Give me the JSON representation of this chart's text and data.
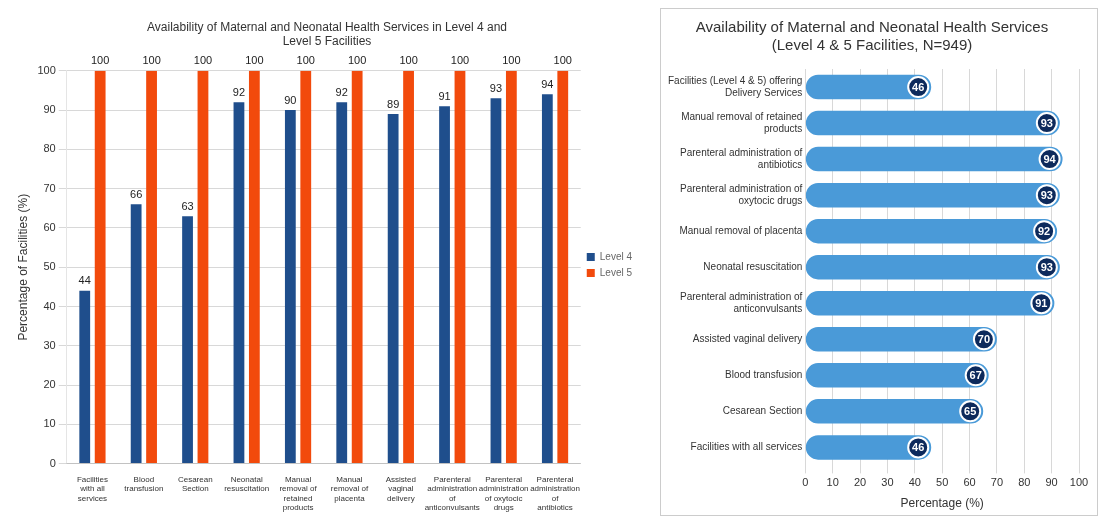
{
  "chart_data": [
    {
      "type": "bar",
      "title": "Availability of Maternal and Neonatal Health Services in Level 4 and Level 5 Facilities",
      "ylabel": "Percentage of Facilities (%)",
      "categories": [
        "Facilities with all services",
        "Blood transfusion",
        "Cesarean Section",
        "Neonatal resuscitation",
        "Manual removal of retained products",
        "Manual removal of placenta",
        "Assisted vaginal delivery",
        "Parenteral administration of anticonvulsants",
        "Parenteral administration of oxytocic drugs",
        "Parenteral administration of antibiotics"
      ],
      "series": [
        {
          "name": "Level 4",
          "color": "#1f4e8c",
          "values": [
            44,
            66,
            63,
            92,
            90,
            92,
            89,
            91,
            93,
            94
          ]
        },
        {
          "name": "Level 5",
          "color": "#f24a0c",
          "values": [
            100,
            100,
            100,
            100,
            100,
            100,
            100,
            100,
            100,
            100
          ]
        }
      ],
      "ylim": [
        0,
        100
      ],
      "yticks": [
        0,
        10,
        20,
        30,
        40,
        50,
        60,
        70,
        80,
        90,
        100
      ],
      "grid": "y",
      "legend": "right",
      "data_labels": true
    },
    {
      "type": "bar",
      "orientation": "horizontal",
      "title": "Availability of Maternal and Neonatal Health Services\n(Level 4 & 5 Facilities, N=949)",
      "xlabel": "Percentage (%)",
      "categories": [
        "Facilities (Level 4 & 5) offering Delivery Services",
        "Manual removal of retained products",
        "Parenteral administration of antibiotics",
        "Parenteral administration of oxytocic drugs",
        "Manual removal of placenta",
        "Neonatal resuscitation",
        "Parenteral administration of anticonvulsants",
        "Assisted vaginal delivery",
        "Blood transfusion",
        "Cesarean Section",
        "Facilities with all services"
      ],
      "values": [
        46,
        93,
        94,
        93,
        92,
        93,
        91,
        70,
        67,
        65,
        46
      ],
      "color": "#4a9ad8",
      "xlim": [
        0,
        100
      ],
      "xticks": [
        0,
        10,
        20,
        30,
        40,
        50,
        60,
        70,
        80,
        90,
        100
      ],
      "grid": "x",
      "data_labels": true
    }
  ]
}
